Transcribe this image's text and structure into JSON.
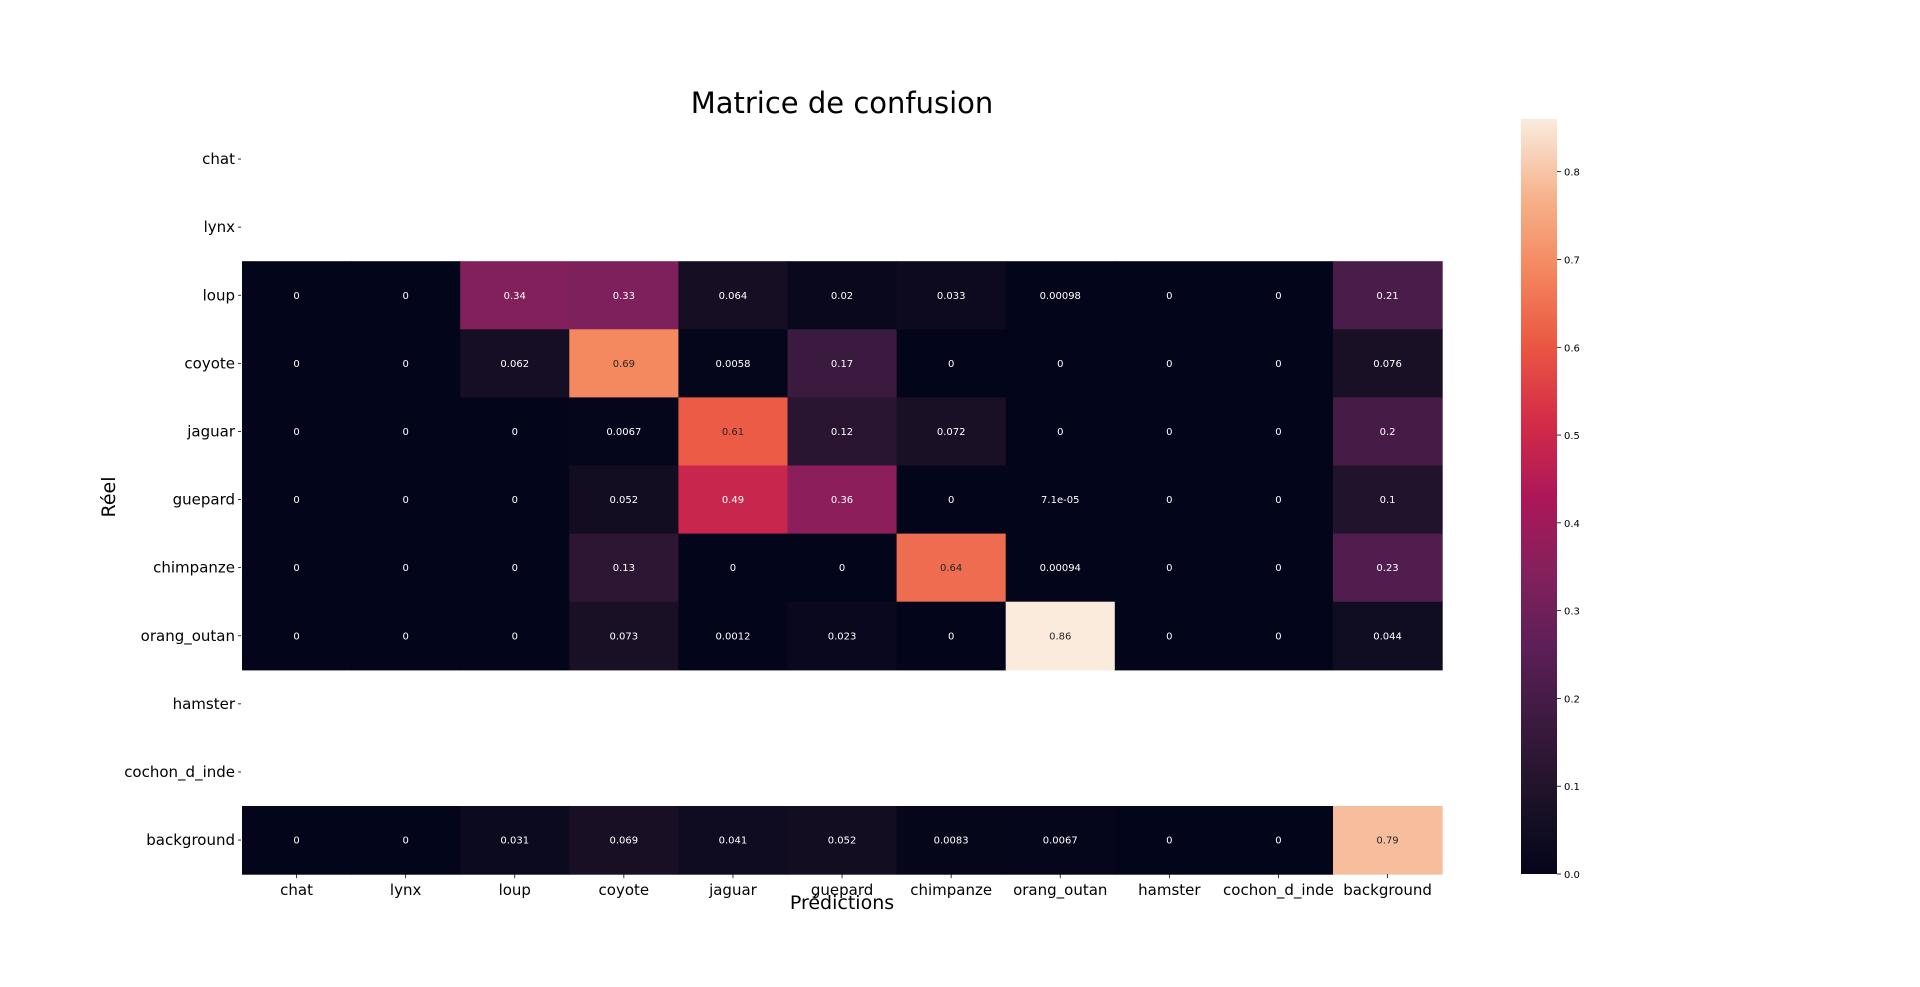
{
  "chart_data": {
    "type": "heatmap",
    "title": "Matrice de confusion",
    "xlabel": "Prédictions",
    "ylabel": "Réel",
    "x_categories": [
      "chat",
      "lynx",
      "loup",
      "coyote",
      "jaguar",
      "guepard",
      "chimpanze",
      "orang_outan",
      "hamster",
      "cochon_d_inde",
      "background"
    ],
    "y_categories": [
      "chat",
      "lynx",
      "loup",
      "coyote",
      "jaguar",
      "guepard",
      "chimpanze",
      "orang_outan",
      "hamster",
      "cochon_d_inde",
      "background"
    ],
    "values": [
      [
        null,
        null,
        null,
        null,
        null,
        null,
        null,
        null,
        null,
        null,
        null
      ],
      [
        null,
        null,
        null,
        null,
        null,
        null,
        null,
        null,
        null,
        null,
        null
      ],
      [
        "0",
        "0",
        "0.34",
        "0.33",
        "0.064",
        "0.02",
        "0.033",
        "0.00098",
        "0",
        "0",
        "0.21"
      ],
      [
        "0",
        "0",
        "0.062",
        "0.69",
        "0.0058",
        "0.17",
        "0",
        "0",
        "0",
        "0",
        "0.076"
      ],
      [
        "0",
        "0",
        "0",
        "0.0067",
        "0.61",
        "0.12",
        "0.072",
        "0",
        "0",
        "0",
        "0.2"
      ],
      [
        "0",
        "0",
        "0",
        "0.052",
        "0.49",
        "0.36",
        "0",
        "7.1e-05",
        "0",
        "0",
        "0.1"
      ],
      [
        "0",
        "0",
        "0",
        "0.13",
        "0",
        "0",
        "0.64",
        "0.00094",
        "0",
        "0",
        "0.23"
      ],
      [
        "0",
        "0",
        "0",
        "0.073",
        "0.0012",
        "0.023",
        "0",
        "0.86",
        "0",
        "0",
        "0.044"
      ],
      [
        null,
        null,
        null,
        null,
        null,
        null,
        null,
        null,
        null,
        null,
        null
      ],
      [
        null,
        null,
        null,
        null,
        null,
        null,
        null,
        null,
        null,
        null,
        null
      ],
      [
        "0",
        "0",
        "0.031",
        "0.069",
        "0.041",
        "0.052",
        "0.0083",
        "0.0067",
        "0",
        "0",
        "0.79"
      ]
    ],
    "colormap": "rocket",
    "colorbar": {
      "min": 0,
      "max": 0.86,
      "ticks": [
        "0.0",
        "0.1",
        "0.2",
        "0.3",
        "0.4",
        "0.5",
        "0.6",
        "0.7",
        "0.8"
      ]
    },
    "grid": false
  }
}
